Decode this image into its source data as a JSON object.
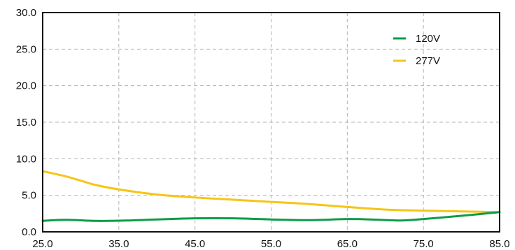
{
  "chart_data": {
    "type": "line",
    "title": "",
    "xlabel": "",
    "ylabel": "",
    "xlim": [
      25,
      85
    ],
    "ylim": [
      0,
      30
    ],
    "x_ticks": [
      "25.0",
      "35.0",
      "45.0",
      "55.0",
      "65.0",
      "75.0",
      "85.0"
    ],
    "y_ticks": [
      "0.0",
      "5.0",
      "10.0",
      "15.0",
      "20.0",
      "25.0",
      "30.0"
    ],
    "grid": true,
    "legend_position": "top-right",
    "series": [
      {
        "name": "120V",
        "color": "#0f9b4a",
        "points": [
          [
            25,
            1.5
          ],
          [
            28,
            1.65
          ],
          [
            32,
            1.5
          ],
          [
            36,
            1.55
          ],
          [
            40,
            1.7
          ],
          [
            45,
            1.85
          ],
          [
            50,
            1.85
          ],
          [
            55,
            1.7
          ],
          [
            60,
            1.6
          ],
          [
            65,
            1.75
          ],
          [
            68,
            1.7
          ],
          [
            72,
            1.55
          ],
          [
            75,
            1.75
          ],
          [
            80,
            2.2
          ],
          [
            85,
            2.7
          ]
        ]
      },
      {
        "name": "277V",
        "color": "#f5c518",
        "points": [
          [
            25,
            8.3
          ],
          [
            28,
            7.6
          ],
          [
            30,
            7.0
          ],
          [
            32,
            6.4
          ],
          [
            35,
            5.8
          ],
          [
            40,
            5.1
          ],
          [
            45,
            4.7
          ],
          [
            50,
            4.4
          ],
          [
            55,
            4.1
          ],
          [
            60,
            3.8
          ],
          [
            65,
            3.4
          ],
          [
            70,
            3.05
          ],
          [
            75,
            2.9
          ],
          [
            80,
            2.8
          ],
          [
            85,
            2.7
          ]
        ]
      }
    ]
  }
}
